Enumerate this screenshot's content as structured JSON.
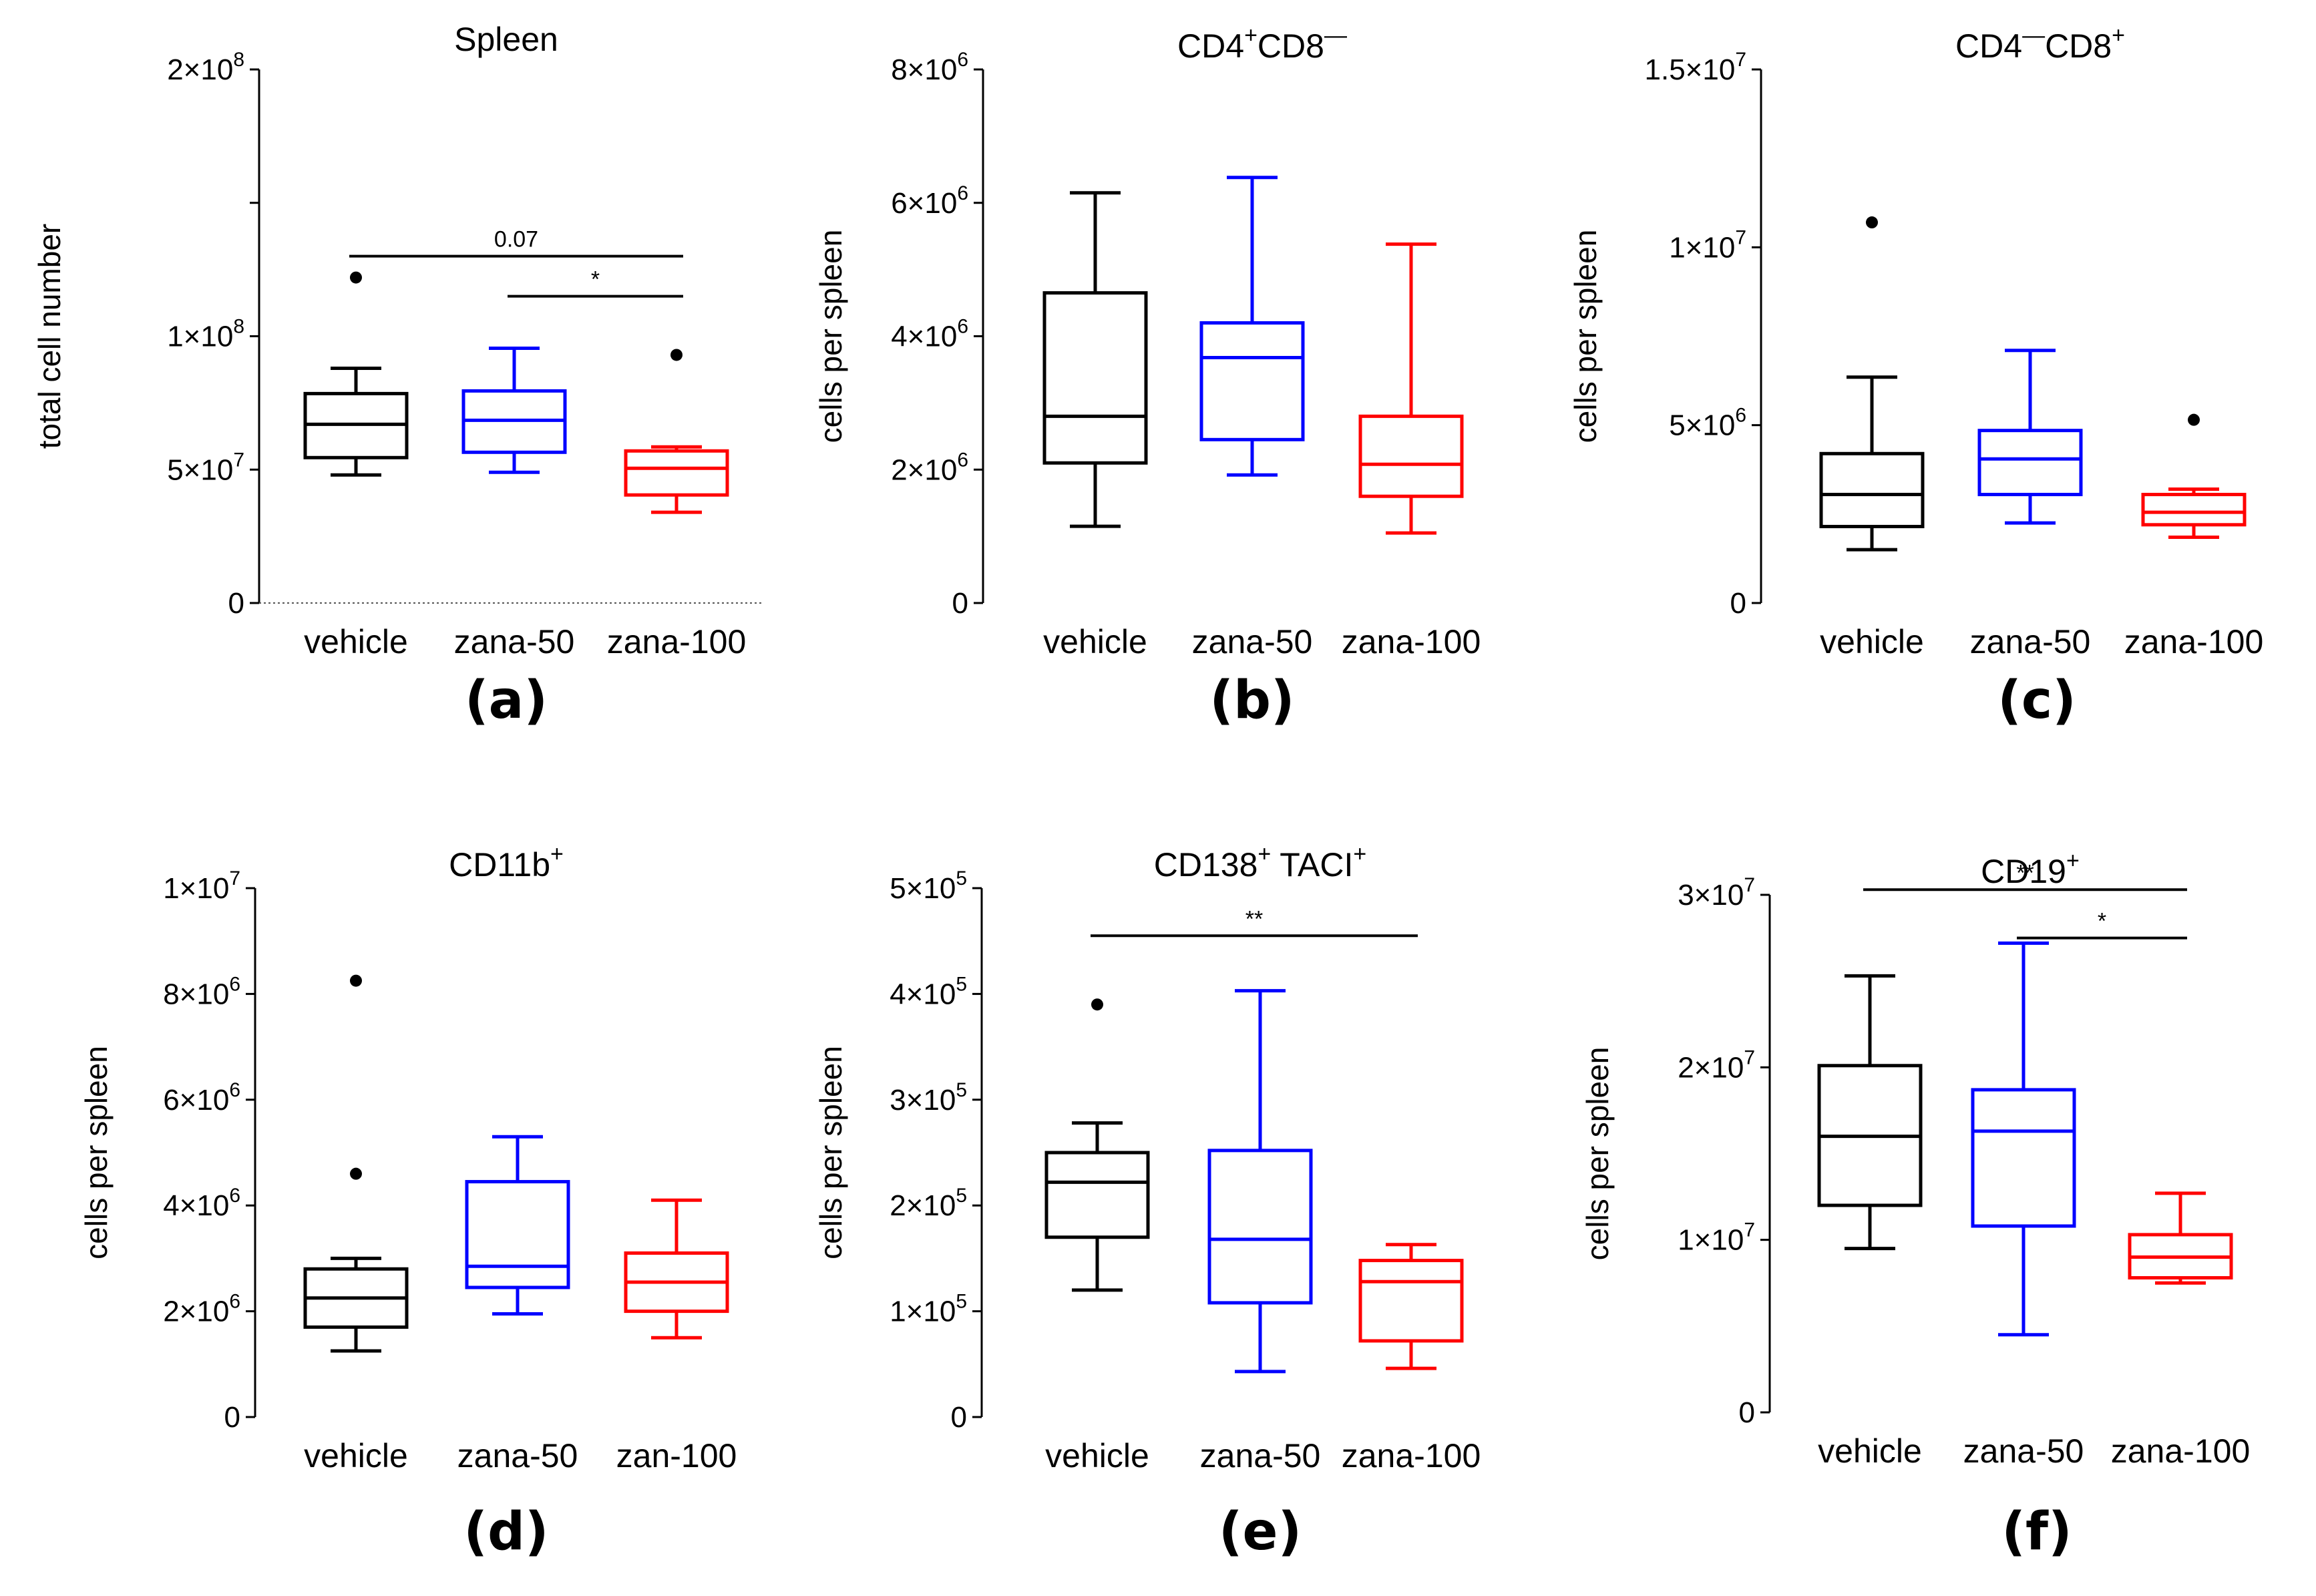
{
  "chart_data": [
    {
      "type": "box",
      "panel_label": "(a)",
      "title": "Spleen",
      "ylabel": "total cell number",
      "ylim": [
        0,
        200000000
      ],
      "yticks": [
        {
          "value": 0,
          "label": "0"
        },
        {
          "value": 50000000,
          "label": "5×10",
          "exp": "7"
        },
        {
          "value": 100000000,
          "label": "1×10",
          "exp": "8"
        },
        {
          "value": 150000000,
          "label": "",
          "exp": ""
        },
        {
          "value": 200000000,
          "label": "2×10",
          "exp": "8"
        }
      ],
      "categories": [
        "vehicle",
        "zana-50",
        "zana-100"
      ],
      "colors": [
        "#000000",
        "#0000ff",
        "#ff0000"
      ],
      "boxes": [
        {
          "min": 48000000,
          "q1": 54500000,
          "median": 67000000,
          "q3": 78500000,
          "max": 88000000,
          "outliers": [
            122000000
          ]
        },
        {
          "min": 49000000,
          "q1": 56500000,
          "median": 68500000,
          "q3": 79500000,
          "max": 95500000,
          "outliers": []
        },
        {
          "min": 34000000,
          "q1": 40500000,
          "median": 50500000,
          "q3": 57000000,
          "max": 58500000,
          "outliers": [
            93000000
          ]
        }
      ],
      "significance": [
        {
          "from": 0,
          "to": 2,
          "y": 130000000,
          "label": "0.07"
        },
        {
          "from": 1,
          "to": 2,
          "y": 115000000,
          "label": "*"
        }
      ]
    },
    {
      "type": "box",
      "panel_label": "(b)",
      "title": "CD4",
      "title_parts": [
        "CD4",
        "+",
        "CD8",
        "—"
      ],
      "ylabel": "cells per spleen",
      "ylim": [
        0,
        8000000
      ],
      "yticks": [
        {
          "value": 0,
          "label": "0"
        },
        {
          "value": 2000000,
          "label": "2×10",
          "exp": "6"
        },
        {
          "value": 4000000,
          "label": "4×10",
          "exp": "6"
        },
        {
          "value": 6000000,
          "label": "6×10",
          "exp": "6"
        },
        {
          "value": 8000000,
          "label": "8×10",
          "exp": "6"
        }
      ],
      "categories": [
        "vehicle",
        "zana-50",
        "zana-100"
      ],
      "colors": [
        "#000000",
        "#0000ff",
        "#ff0000"
      ],
      "boxes": [
        {
          "min": 1150000,
          "q1": 2100000,
          "median": 2800000,
          "q3": 4650000,
          "max": 6150000,
          "outliers": []
        },
        {
          "min": 1920000,
          "q1": 2450000,
          "median": 3680000,
          "q3": 4200000,
          "max": 6380000,
          "outliers": []
        },
        {
          "min": 1050000,
          "q1": 1600000,
          "median": 2080000,
          "q3": 2800000,
          "max": 5380000,
          "outliers": []
        }
      ],
      "significance": []
    },
    {
      "type": "box",
      "panel_label": "(c)",
      "title": "CD4",
      "title_parts": [
        "CD4",
        "—",
        "CD8",
        "+"
      ],
      "ylabel": "cells per spleen",
      "ylim": [
        0,
        15000000
      ],
      "yticks": [
        {
          "value": 0,
          "label": "0"
        },
        {
          "value": 5000000,
          "label": "5×10",
          "exp": "6"
        },
        {
          "value": 10000000,
          "label": "1×10",
          "exp": "7"
        },
        {
          "value": 15000000,
          "label": "1.5×10",
          "exp": "7"
        }
      ],
      "categories": [
        "vehicle",
        "zana-50",
        "zana-100"
      ],
      "colors": [
        "#000000",
        "#0000ff",
        "#ff0000"
      ],
      "boxes": [
        {
          "min": 1500000,
          "q1": 2150000,
          "median": 3050000,
          "q3": 4200000,
          "max": 6350000,
          "outliers": [
            10700000
          ]
        },
        {
          "min": 2250000,
          "q1": 3050000,
          "median": 4050000,
          "q3": 4850000,
          "max": 7100000,
          "outliers": []
        },
        {
          "min": 1850000,
          "q1": 2200000,
          "median": 2550000,
          "q3": 3050000,
          "max": 3200000,
          "outliers": [
            5150000
          ]
        }
      ],
      "significance": []
    },
    {
      "type": "box",
      "panel_label": "(d)",
      "title": "CD11b",
      "title_parts": [
        "CD11b",
        "+"
      ],
      "ylabel": "cells per spleen",
      "ylim": [
        0,
        10000000
      ],
      "yticks": [
        {
          "value": 0,
          "label": "0"
        },
        {
          "value": 2000000,
          "label": "2×10",
          "exp": "6"
        },
        {
          "value": 4000000,
          "label": "4×10",
          "exp": "6"
        },
        {
          "value": 6000000,
          "label": "6×10",
          "exp": "6"
        },
        {
          "value": 8000000,
          "label": "8×10",
          "exp": "6"
        },
        {
          "value": 10000000,
          "label": "1×10",
          "exp": "7"
        }
      ],
      "categories": [
        "vehicle",
        "zana-50",
        "zan-100"
      ],
      "colors": [
        "#000000",
        "#0000ff",
        "#ff0000"
      ],
      "boxes": [
        {
          "min": 1250000,
          "q1": 1700000,
          "median": 2250000,
          "q3": 2800000,
          "max": 3000000,
          "outliers": [
            4600000,
            8250000
          ]
        },
        {
          "min": 1950000,
          "q1": 2450000,
          "median": 2850000,
          "q3": 4450000,
          "max": 5300000,
          "outliers": []
        },
        {
          "min": 1500000,
          "q1": 2000000,
          "median": 2550000,
          "q3": 3100000,
          "max": 4100000,
          "outliers": []
        }
      ],
      "significance": []
    },
    {
      "type": "box",
      "panel_label": "(e)",
      "title": "CD138",
      "title_parts": [
        "CD138",
        "+",
        " TACI",
        "+"
      ],
      "ylabel": "cells per spleen",
      "ylim": [
        0,
        500000
      ],
      "yticks": [
        {
          "value": 0,
          "label": "0"
        },
        {
          "value": 100000,
          "label": "1×10",
          "exp": "5"
        },
        {
          "value": 200000,
          "label": "2×10",
          "exp": "5"
        },
        {
          "value": 300000,
          "label": "3×10",
          "exp": "5"
        },
        {
          "value": 400000,
          "label": "4×10",
          "exp": "5"
        },
        {
          "value": 500000,
          "label": "5×10",
          "exp": "5"
        }
      ],
      "categories": [
        "vehicle",
        "zana-50",
        "zana-100"
      ],
      "colors": [
        "#000000",
        "#0000ff",
        "#ff0000"
      ],
      "boxes": [
        {
          "min": 120000,
          "q1": 170000,
          "median": 222000,
          "q3": 250000,
          "max": 278000,
          "outliers": [
            390000
          ]
        },
        {
          "min": 43000,
          "q1": 108000,
          "median": 168000,
          "q3": 252000,
          "max": 403000,
          "outliers": []
        },
        {
          "min": 46000,
          "q1": 72000,
          "median": 128000,
          "q3": 148000,
          "max": 163000,
          "outliers": []
        }
      ],
      "significance": [
        {
          "from": 0,
          "to": 2,
          "y": 455000,
          "label": "**"
        }
      ]
    },
    {
      "type": "box",
      "panel_label": "(f)",
      "title": "CD19",
      "title_parts": [
        "CD19",
        "+"
      ],
      "ylabel": "cells per spleen",
      "ylim": [
        0,
        30000000
      ],
      "yticks": [
        {
          "value": 0,
          "label": "0"
        },
        {
          "value": 10000000,
          "label": "1×10",
          "exp": "7"
        },
        {
          "value": 20000000,
          "label": "2×10",
          "exp": "7"
        },
        {
          "value": 30000000,
          "label": "3×10",
          "exp": "7"
        }
      ],
      "categories": [
        "vehicle",
        "zana-50",
        "zana-100"
      ],
      "colors": [
        "#000000",
        "#0000ff",
        "#ff0000"
      ],
      "boxes": [
        {
          "min": 9500000,
          "q1": 12000000,
          "median": 16000000,
          "q3": 20100000,
          "max": 25300000,
          "outliers": []
        },
        {
          "min": 4500000,
          "q1": 10800000,
          "median": 16300000,
          "q3": 18700000,
          "max": 27200000,
          "outliers": []
        },
        {
          "min": 7500000,
          "q1": 7800000,
          "median": 9000000,
          "q3": 10300000,
          "max": 12700000,
          "outliers": []
        }
      ],
      "significance": [
        {
          "from": 0,
          "to": 2,
          "y": 30300000,
          "label": "**"
        },
        {
          "from": 1,
          "to": 2,
          "y": 27500000,
          "label": "*"
        }
      ]
    }
  ]
}
